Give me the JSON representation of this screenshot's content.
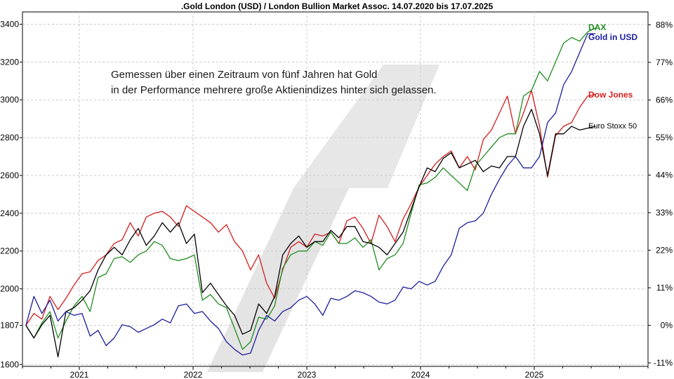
{
  "chart_data": {
    "type": "line",
    "title": ".Gold London (USD) / London Bullion Market Assoc. 14.07.2020 bis 17.07.2025",
    "annotation": [
      "Gemessen über einen Zeitraum von fünf Jahren hat Gold",
      "in der Performance mehrere große Aktienindizes hinter sich gelassen."
    ],
    "x_range": [
      2020.53,
      2025.54
    ],
    "xlim": [
      2020.5,
      2026.0
    ],
    "x_ticks": [
      {
        "label": "2021",
        "value": 2021
      },
      {
        "label": "2022",
        "value": 2022
      },
      {
        "label": "2023",
        "value": 2023
      },
      {
        "label": "2024",
        "value": 2024
      },
      {
        "label": "2025",
        "value": 2025
      }
    ],
    "left_axis": {
      "ylim": [
        1590,
        3465
      ],
      "ticks": [
        {
          "label": "3400",
          "value": 3400
        },
        {
          "label": "3200",
          "value": 3200
        },
        {
          "label": "3000",
          "value": 3000
        },
        {
          "label": "2800",
          "value": 2800
        },
        {
          "label": "2600",
          "value": 2600
        },
        {
          "label": "2400",
          "value": 2400
        },
        {
          "label": "2200",
          "value": 2200
        },
        {
          "label": "2000",
          "value": 2000
        },
        {
          "label": "1807",
          "value": 1807
        },
        {
          "label": "1600",
          "value": 1600
        }
      ]
    },
    "right_axis": {
      "unit": "percent",
      "ticks": [
        {
          "label": "88%",
          "value": 88
        },
        {
          "label": "77%",
          "value": 77
        },
        {
          "label": "66%",
          "value": 66
        },
        {
          "label": "55%",
          "value": 55
        },
        {
          "label": "44%",
          "value": 44
        },
        {
          "label": "33%",
          "value": 33
        },
        {
          "label": "22%",
          "value": 22
        },
        {
          "label": "11%",
          "value": 11
        },
        {
          "label": "0%",
          "value": 0
        },
        {
          "label": "-11%",
          "value": -11
        }
      ]
    },
    "series": [
      {
        "name": "Dow Jones",
        "color": "#d21e1e",
        "label_style": "bold",
        "values": [
          1807,
          1870,
          1840,
          1960,
          1890,
          1950,
          2020,
          2080,
          2090,
          2150,
          2180,
          2240,
          2260,
          2350,
          2280,
          2380,
          2400,
          2410,
          2380,
          2330,
          2440,
          2410,
          2380,
          2350,
          2300,
          2340,
          2250,
          2200,
          2100,
          2180,
          2030,
          1950,
          2100,
          2220,
          2250,
          2220,
          2290,
          2280,
          2300,
          2240,
          2360,
          2380,
          2320,
          2240,
          2390,
          2330,
          2250,
          2370,
          2450,
          2540,
          2600,
          2660,
          2700,
          2730,
          2640,
          2700,
          2630,
          2790,
          2840,
          2930,
          3020,
          2820,
          2930,
          3050,
          2860,
          2590,
          2810,
          2860,
          2880,
          2960,
          3020,
          3030
        ]
      },
      {
        "name": "DAX",
        "color": "#1f8c1f",
        "label_style": "bold",
        "values": [
          1807,
          1740,
          1820,
          1880,
          1740,
          1830,
          1910,
          1960,
          1880,
          2060,
          2080,
          2160,
          2170,
          2140,
          2180,
          2200,
          2250,
          2230,
          2160,
          2150,
          2160,
          2180,
          1940,
          1970,
          1920,
          1900,
          1790,
          1680,
          1720,
          1850,
          1840,
          1910,
          2110,
          2180,
          2200,
          2200,
          2250,
          2230,
          2300,
          2240,
          2240,
          2270,
          2220,
          2260,
          2100,
          2160,
          2180,
          2240,
          2400,
          2550,
          2560,
          2590,
          2640,
          2600,
          2560,
          2520,
          2650,
          2700,
          2750,
          2800,
          2820,
          2820,
          3020,
          3050,
          3150,
          3100,
          3200,
          3300,
          3330,
          3310,
          3360,
          3380
        ]
      },
      {
        "name": "Euro Stoxx 50",
        "color": "#000000",
        "label_style": "plain",
        "values": [
          1807,
          1740,
          1810,
          1860,
          1640,
          1880,
          1900,
          1940,
          1990,
          2100,
          2180,
          2220,
          2180,
          2260,
          2320,
          2230,
          2280,
          2350,
          2300,
          2350,
          2240,
          2290,
          1980,
          2030,
          1970,
          1910,
          1860,
          1760,
          1780,
          1920,
          1870,
          1960,
          2180,
          2240,
          2280,
          2220,
          2250,
          2250,
          2310,
          2270,
          2330,
          2330,
          2250,
          2240,
          2220,
          2180,
          2240,
          2300,
          2420,
          2540,
          2640,
          2620,
          2690,
          2720,
          2640,
          2660,
          2680,
          2620,
          2650,
          2640,
          2700,
          2700,
          2860,
          2950,
          2820,
          2600,
          2820,
          2820,
          2860,
          2840,
          2850,
          2860
        ]
      },
      {
        "name": "Gold in USD",
        "color": "#1c1c9c",
        "label_style": "bold",
        "values": [
          1807,
          1960,
          1870,
          1940,
          1830,
          1880,
          1860,
          1870,
          1750,
          1780,
          1700,
          1740,
          1810,
          1800,
          1770,
          1790,
          1810,
          1840,
          1820,
          1910,
          1920,
          1870,
          1880,
          1830,
          1790,
          1720,
          1680,
          1650,
          1660,
          1780,
          1860,
          1830,
          1880,
          1900,
          1940,
          1960,
          1920,
          1860,
          1950,
          1940,
          1960,
          1990,
          1980,
          1960,
          1930,
          1920,
          1940,
          2010,
          2000,
          2040,
          2020,
          2040,
          2120,
          2180,
          2320,
          2350,
          2360,
          2400,
          2500,
          2580,
          2650,
          2700,
          2640,
          2640,
          2700,
          2880,
          2930,
          3080,
          3150,
          3250,
          3350,
          3350
        ]
      }
    ]
  },
  "watermark_text": "/"
}
